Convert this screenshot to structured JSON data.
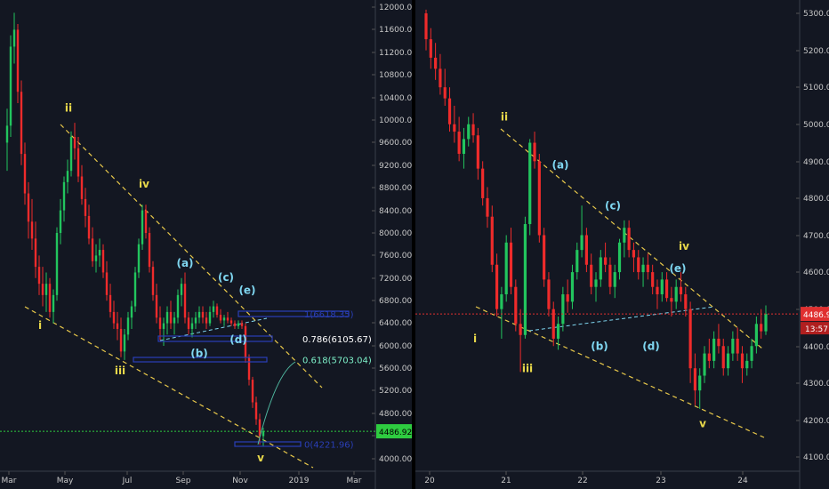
{
  "colors": {
    "background": "#131722",
    "bull": "#22c55e",
    "bear": "#ef2b2b",
    "trend": "#e8c84a",
    "wave_primary": "#e8d84a",
    "wave_sub": "#7fd6f0",
    "fib_box": "#2a3fb8",
    "price_line": "#2ecc40",
    "price_line_right": "#e03030",
    "axis_text": "#c8c8c8"
  },
  "chart_data": [
    {
      "type": "candlestick",
      "title": "",
      "x_tick_labels": [
        "Mar",
        "May",
        "Jul",
        "Sep",
        "Nov",
        "2019",
        "Mar"
      ],
      "y_tick_labels": [
        "12000.00",
        "11600.00",
        "11200.00",
        "10800.00",
        "10400.00",
        "10000.00",
        "9600.00",
        "9200.00",
        "8800.00",
        "8400.00",
        "8000.00",
        "7600.00",
        "7200.00",
        "6800.00",
        "6400.00",
        "6000.00",
        "5600.00",
        "5200.00",
        "4800.00",
        "4400.00",
        "4000.00"
      ],
      "ylim": [
        3800,
        12250
      ],
      "grid": false,
      "last_price": {
        "value": 4486.92,
        "label": "4486.92"
      },
      "wave_labels": [
        {
          "text": "i",
          "price": 6300,
          "style": "primary"
        },
        {
          "text": "ii",
          "price": 10150,
          "style": "primary"
        },
        {
          "text": "iii",
          "price": 5500,
          "style": "primary"
        },
        {
          "text": "iv",
          "price": 8800,
          "style": "primary"
        },
        {
          "text": "v",
          "price": 3950,
          "style": "primary"
        },
        {
          "text": "(a)",
          "price": 7400,
          "style": "sub"
        },
        {
          "text": "(b)",
          "price": 5800,
          "style": "sub"
        },
        {
          "text": "(c)",
          "price": 7150,
          "style": "sub"
        },
        {
          "text": "(d)",
          "price": 6050,
          "style": "sub"
        },
        {
          "text": "(e)",
          "price": 6920,
          "style": "sub"
        }
      ],
      "fib_levels": [
        {
          "label": "1(6618.35)",
          "price": 6618.35,
          "color": "#2a3fb8"
        },
        {
          "label": "0.786(6105.67)",
          "price": 6105.67,
          "color": "#ffffff"
        },
        {
          "label": "0.618(5703.04)",
          "price": 5703.04,
          "color": "#7df0c8"
        },
        {
          "label": "0(4221.96)",
          "price": 4221.96,
          "color": "#2a3fb8"
        }
      ],
      "candles": [
        [
          9600,
          10200,
          9100,
          9900
        ],
        [
          9900,
          11500,
          9700,
          11300
        ],
        [
          11300,
          11900,
          11000,
          11600
        ],
        [
          11600,
          11700,
          10300,
          10500
        ],
        [
          10500,
          10700,
          9200,
          9400
        ],
        [
          9400,
          9600,
          8500,
          8700
        ],
        [
          8700,
          8900,
          7900,
          8200
        ],
        [
          8200,
          8600,
          7700,
          7900
        ],
        [
          7900,
          8200,
          7200,
          7400
        ],
        [
          7400,
          7600,
          6900,
          7100
        ],
        [
          7100,
          7400,
          6700,
          6900
        ],
        [
          6900,
          7300,
          6600,
          7100
        ],
        [
          7100,
          7200,
          6500,
          6600
        ],
        [
          6600,
          7000,
          6400,
          6900
        ],
        [
          6900,
          8100,
          6800,
          8000
        ],
        [
          8000,
          8600,
          7800,
          8400
        ],
        [
          8400,
          9000,
          8200,
          8900
        ],
        [
          8900,
          9300,
          8700,
          9100
        ],
        [
          9100,
          9800,
          9000,
          9700
        ],
        [
          9700,
          9950,
          9300,
          9500
        ],
        [
          9500,
          9700,
          8900,
          9000
        ],
        [
          9000,
          9200,
          8500,
          8600
        ],
        [
          8600,
          8800,
          8100,
          8300
        ],
        [
          8300,
          8500,
          7800,
          7900
        ],
        [
          7900,
          8100,
          7400,
          7500
        ],
        [
          7500,
          7800,
          7300,
          7600
        ],
        [
          7600,
          7900,
          7400,
          7700
        ],
        [
          7700,
          7800,
          7200,
          7300
        ],
        [
          7300,
          7500,
          6800,
          6900
        ],
        [
          6900,
          7100,
          6500,
          6600
        ],
        [
          6600,
          6800,
          6300,
          6400
        ],
        [
          6400,
          6600,
          6100,
          6300
        ],
        [
          6300,
          6500,
          5800,
          5900
        ],
        [
          5900,
          6300,
          5750,
          6200
        ],
        [
          6200,
          6600,
          6100,
          6500
        ],
        [
          6500,
          6800,
          6300,
          6700
        ],
        [
          6700,
          7400,
          6600,
          7300
        ],
        [
          7300,
          7900,
          7200,
          7800
        ],
        [
          7800,
          8500,
          7700,
          8400
        ],
        [
          8400,
          8500,
          7900,
          8000
        ],
        [
          8000,
          8100,
          7300,
          7400
        ],
        [
          7400,
          7500,
          6800,
          6900
        ],
        [
          6900,
          7100,
          6400,
          6500
        ],
        [
          6500,
          6700,
          6100,
          6300
        ],
        [
          6300,
          6500,
          6000,
          6400
        ],
        [
          6400,
          6700,
          6200,
          6600
        ],
        [
          6600,
          6800,
          6300,
          6400
        ],
        [
          6400,
          6600,
          6200,
          6500
        ],
        [
          6500,
          7000,
          6400,
          6900
        ],
        [
          6900,
          7200,
          6700,
          7100
        ],
        [
          7100,
          7300,
          6400,
          6500
        ],
        [
          6500,
          6600,
          6200,
          6300
        ],
        [
          6300,
          6500,
          6150,
          6400
        ],
        [
          6400,
          6600,
          6300,
          6500
        ],
        [
          6500,
          6700,
          6400,
          6600
        ],
        [
          6600,
          6700,
          6400,
          6500
        ],
        [
          6500,
          6600,
          6300,
          6400
        ],
        [
          6400,
          6700,
          6350,
          6600
        ],
        [
          6600,
          6800,
          6500,
          6700
        ],
        [
          6700,
          6750,
          6500,
          6550
        ],
        [
          6550,
          6650,
          6400,
          6450
        ],
        [
          6450,
          6550,
          6350,
          6500
        ],
        [
          6500,
          6600,
          6400,
          6450
        ],
        [
          6450,
          6500,
          6350,
          6400
        ],
        [
          6400,
          6450,
          6300,
          6350
        ],
        [
          6350,
          6450,
          6300,
          6400
        ],
        [
          6400,
          6450,
          6300,
          6350
        ],
        [
          6350,
          6400,
          5700,
          5800
        ],
        [
          5800,
          5850,
          5300,
          5400
        ],
        [
          5400,
          5450,
          4900,
          5000
        ],
        [
          5000,
          5100,
          4600,
          4700
        ],
        [
          4700,
          4800,
          4250,
          4400
        ],
        [
          4400,
          4550,
          4222,
          4486.92
        ]
      ]
    },
    {
      "type": "candlestick",
      "title": "",
      "x_tick_labels": [
        "20",
        "21",
        "22",
        "23",
        "24"
      ],
      "y_tick_labels": [
        "5300.00",
        "5200.00",
        "5100.00",
        "5000.00",
        "4900.00",
        "4800.00",
        "4700.00",
        "4600.00",
        "4500.00",
        "4400.00",
        "4300.00",
        "4200.00",
        "4100.00"
      ],
      "ylim": [
        4070,
        5340
      ],
      "grid": false,
      "last_price": {
        "value": 4486.92,
        "label": "4486.92",
        "timer": "13:57"
      },
      "wave_labels": [
        {
          "text": "i",
          "price": 4410,
          "style": "primary"
        },
        {
          "text": "ii",
          "price": 5010,
          "style": "primary"
        },
        {
          "text": "iii",
          "price": 4330,
          "style": "primary"
        },
        {
          "text": "iv",
          "price": 4660,
          "style": "primary"
        },
        {
          "text": "v",
          "price": 4180,
          "style": "primary"
        },
        {
          "text": "(a)",
          "price": 4880,
          "style": "sub"
        },
        {
          "text": "(b)",
          "price": 4390,
          "style": "sub"
        },
        {
          "text": "(c)",
          "price": 4770,
          "style": "sub"
        },
        {
          "text": "(d)",
          "price": 4390,
          "style": "sub"
        },
        {
          "text": "(e)",
          "price": 4600,
          "style": "sub"
        }
      ],
      "candles": [
        [
          5300,
          5310,
          5200,
          5230
        ],
        [
          5230,
          5260,
          5150,
          5180
        ],
        [
          5180,
          5220,
          5120,
          5150
        ],
        [
          5150,
          5190,
          5080,
          5100
        ],
        [
          5100,
          5150,
          5050,
          5070
        ],
        [
          5070,
          5100,
          4980,
          5000
        ],
        [
          5000,
          5050,
          4950,
          4980
        ],
        [
          4980,
          5020,
          4900,
          4920
        ],
        [
          4920,
          4990,
          4880,
          4960
        ],
        [
          4960,
          5020,
          4940,
          5000
        ],
        [
          5000,
          5030,
          4950,
          4970
        ],
        [
          4970,
          4990,
          4850,
          4880
        ],
        [
          4880,
          4900,
          4780,
          4800
        ],
        [
          4800,
          4830,
          4720,
          4750
        ],
        [
          4750,
          4780,
          4600,
          4620
        ],
        [
          4620,
          4650,
          4480,
          4500
        ],
        [
          4500,
          4560,
          4420,
          4540
        ],
        [
          4540,
          4700,
          4520,
          4680
        ],
        [
          4680,
          4720,
          4540,
          4560
        ],
        [
          4560,
          4580,
          4440,
          4460
        ],
        [
          4460,
          4500,
          4330,
          4430
        ],
        [
          4430,
          4750,
          4420,
          4730
        ],
        [
          4730,
          4960,
          4700,
          4950
        ],
        [
          4950,
          4980,
          4880,
          4900
        ],
        [
          4900,
          4920,
          4680,
          4700
        ],
        [
          4700,
          4720,
          4560,
          4580
        ],
        [
          4580,
          4600,
          4480,
          4500
        ],
        [
          4500,
          4520,
          4400,
          4420
        ],
        [
          4420,
          4480,
          4390,
          4460
        ],
        [
          4460,
          4560,
          4440,
          4540
        ],
        [
          4540,
          4580,
          4490,
          4520
        ],
        [
          4520,
          4620,
          4500,
          4600
        ],
        [
          4600,
          4680,
          4580,
          4660
        ],
        [
          4660,
          4780,
          4640,
          4700
        ],
        [
          4700,
          4720,
          4600,
          4620
        ],
        [
          4620,
          4650,
          4540,
          4560
        ],
        [
          4560,
          4600,
          4520,
          4580
        ],
        [
          4580,
          4660,
          4560,
          4640
        ],
        [
          4640,
          4680,
          4600,
          4620
        ],
        [
          4620,
          4640,
          4540,
          4560
        ],
        [
          4560,
          4620,
          4530,
          4600
        ],
        [
          4600,
          4690,
          4580,
          4680
        ],
        [
          4680,
          4740,
          4640,
          4720
        ],
        [
          4720,
          4740,
          4640,
          4660
        ],
        [
          4660,
          4680,
          4600,
          4640
        ],
        [
          4640,
          4660,
          4580,
          4600
        ],
        [
          4600,
          4640,
          4560,
          4620
        ],
        [
          4620,
          4650,
          4580,
          4600
        ],
        [
          4600,
          4620,
          4540,
          4560
        ],
        [
          4560,
          4580,
          4500,
          4540
        ],
        [
          4540,
          4600,
          4520,
          4580
        ],
        [
          4580,
          4600,
          4520,
          4530
        ],
        [
          4530,
          4560,
          4480,
          4520
        ],
        [
          4520,
          4580,
          4500,
          4560
        ],
        [
          4560,
          4600,
          4520,
          4540
        ],
        [
          4540,
          4560,
          4480,
          4500
        ],
        [
          4500,
          4520,
          4300,
          4340
        ],
        [
          4340,
          4380,
          4240,
          4280
        ],
        [
          4280,
          4340,
          4230,
          4320
        ],
        [
          4320,
          4400,
          4300,
          4380
        ],
        [
          4380,
          4420,
          4340,
          4360
        ],
        [
          4360,
          4440,
          4340,
          4420
        ],
        [
          4420,
          4460,
          4380,
          4400
        ],
        [
          4400,
          4420,
          4320,
          4340
        ],
        [
          4340,
          4400,
          4320,
          4380
        ],
        [
          4380,
          4440,
          4360,
          4420
        ],
        [
          4420,
          4450,
          4360,
          4380
        ],
        [
          4380,
          4400,
          4300,
          4340
        ],
        [
          4340,
          4380,
          4320,
          4360
        ],
        [
          4360,
          4420,
          4340,
          4400
        ],
        [
          4400,
          4480,
          4380,
          4460
        ],
        [
          4460,
          4500,
          4420,
          4440
        ],
        [
          4440,
          4510,
          4430,
          4486.92
        ]
      ]
    }
  ]
}
